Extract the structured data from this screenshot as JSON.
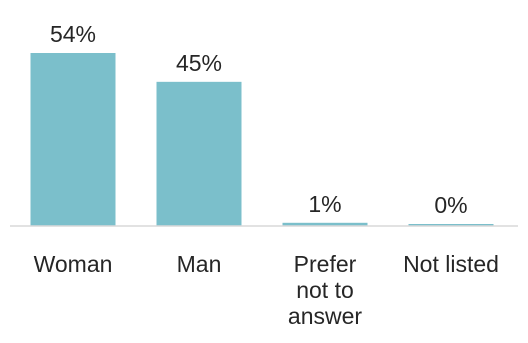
{
  "chart_data": {
    "type": "bar",
    "categories": [
      [
        "Woman"
      ],
      [
        "Man"
      ],
      [
        "Prefer",
        "not to",
        "answer"
      ],
      [
        "Not listed"
      ]
    ],
    "values": [
      54,
      45,
      1,
      0
    ],
    "value_labels": [
      "54%",
      "45%",
      "1%",
      "0%"
    ],
    "value_unit": "%",
    "ylim": [
      0,
      54
    ],
    "bar_color": "#7BBFCB",
    "axis_color": "#D9D9D9",
    "text_color": "#262626",
    "grid": false,
    "legend": "none"
  }
}
